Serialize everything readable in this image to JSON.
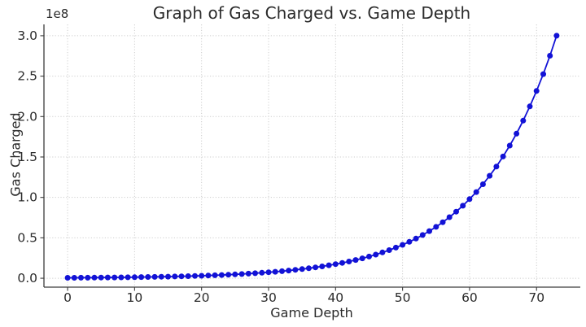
{
  "chart_data": {
    "type": "line",
    "title": "Graph of Gas Charged vs. Game Depth",
    "xlabel": "Game Depth",
    "ylabel": "Gas Charged",
    "y_offset_text": "1e8",
    "legend": "none",
    "grid": true,
    "marker": "circle",
    "colors": {
      "line": "#1212d6",
      "marker": "#1212d6",
      "grid": "#cdcdcd",
      "spine": "#3c3c3c",
      "tick": "#3c3c3c",
      "text": "#2b2b2b",
      "background": "#ffffff"
    },
    "xlim": [
      -3.53,
      76.53
    ],
    "ylim": [
      -11000000,
      314000000
    ],
    "x_ticks": [
      {
        "label": "0",
        "value": 0
      },
      {
        "label": "10",
        "value": 10
      },
      {
        "label": "20",
        "value": 20
      },
      {
        "label": "30",
        "value": 30
      },
      {
        "label": "40",
        "value": 40
      },
      {
        "label": "50",
        "value": 50
      },
      {
        "label": "60",
        "value": 60
      },
      {
        "label": "70",
        "value": 70
      }
    ],
    "y_ticks": [
      {
        "label": "0.0",
        "value": 0
      },
      {
        "label": "0.5",
        "value": 50000000
      },
      {
        "label": "1.0",
        "value": 100000000
      },
      {
        "label": "1.5",
        "value": 150000000
      },
      {
        "label": "2.0",
        "value": 200000000
      },
      {
        "label": "2.5",
        "value": 250000000
      },
      {
        "label": "3.0",
        "value": 300000000
      }
    ],
    "x": [
      0,
      1,
      2,
      3,
      4,
      5,
      6,
      7,
      8,
      9,
      10,
      11,
      12,
      13,
      14,
      15,
      16,
      17,
      18,
      19,
      20,
      21,
      22,
      23,
      24,
      25,
      26,
      27,
      28,
      29,
      30,
      31,
      32,
      33,
      34,
      35,
      36,
      37,
      38,
      39,
      40,
      41,
      42,
      43,
      44,
      45,
      46,
      47,
      48,
      49,
      50,
      51,
      52,
      53,
      54,
      55,
      56,
      57,
      58,
      59,
      60,
      61,
      62,
      63,
      64,
      65,
      66,
      67,
      68,
      69,
      70,
      71,
      72,
      73
    ],
    "y": [
      556000,
      606000,
      660000,
      720000,
      785000,
      855000,
      932000,
      1016000,
      1108000,
      1207000,
      1316000,
      1434000,
      1564000,
      1704000,
      1858000,
      2025000,
      2207000,
      2406000,
      2622000,
      2858000,
      3115000,
      3396000,
      3701000,
      4035000,
      4398000,
      4793000,
      5225000,
      5695000,
      6208000,
      6767000,
      7375000,
      8039000,
      8763000,
      9551000,
      10410000,
      11350000,
      12370000,
      13480000,
      14700000,
      16020000,
      17460000,
      19030000,
      20740000,
      22610000,
      24650000,
      26870000,
      29280000,
      31920000,
      34790000,
      37920000,
      41330000,
      45050000,
      49110000,
      53530000,
      58350000,
      63600000,
      69320000,
      75560000,
      82360000,
      89770000,
      97860000,
      106660000,
      116260000,
      126720000,
      138130000,
      150560000,
      164110000,
      178880000,
      194980000,
      212530000,
      231660000,
      252500000,
      275230000,
      300000000
    ]
  }
}
